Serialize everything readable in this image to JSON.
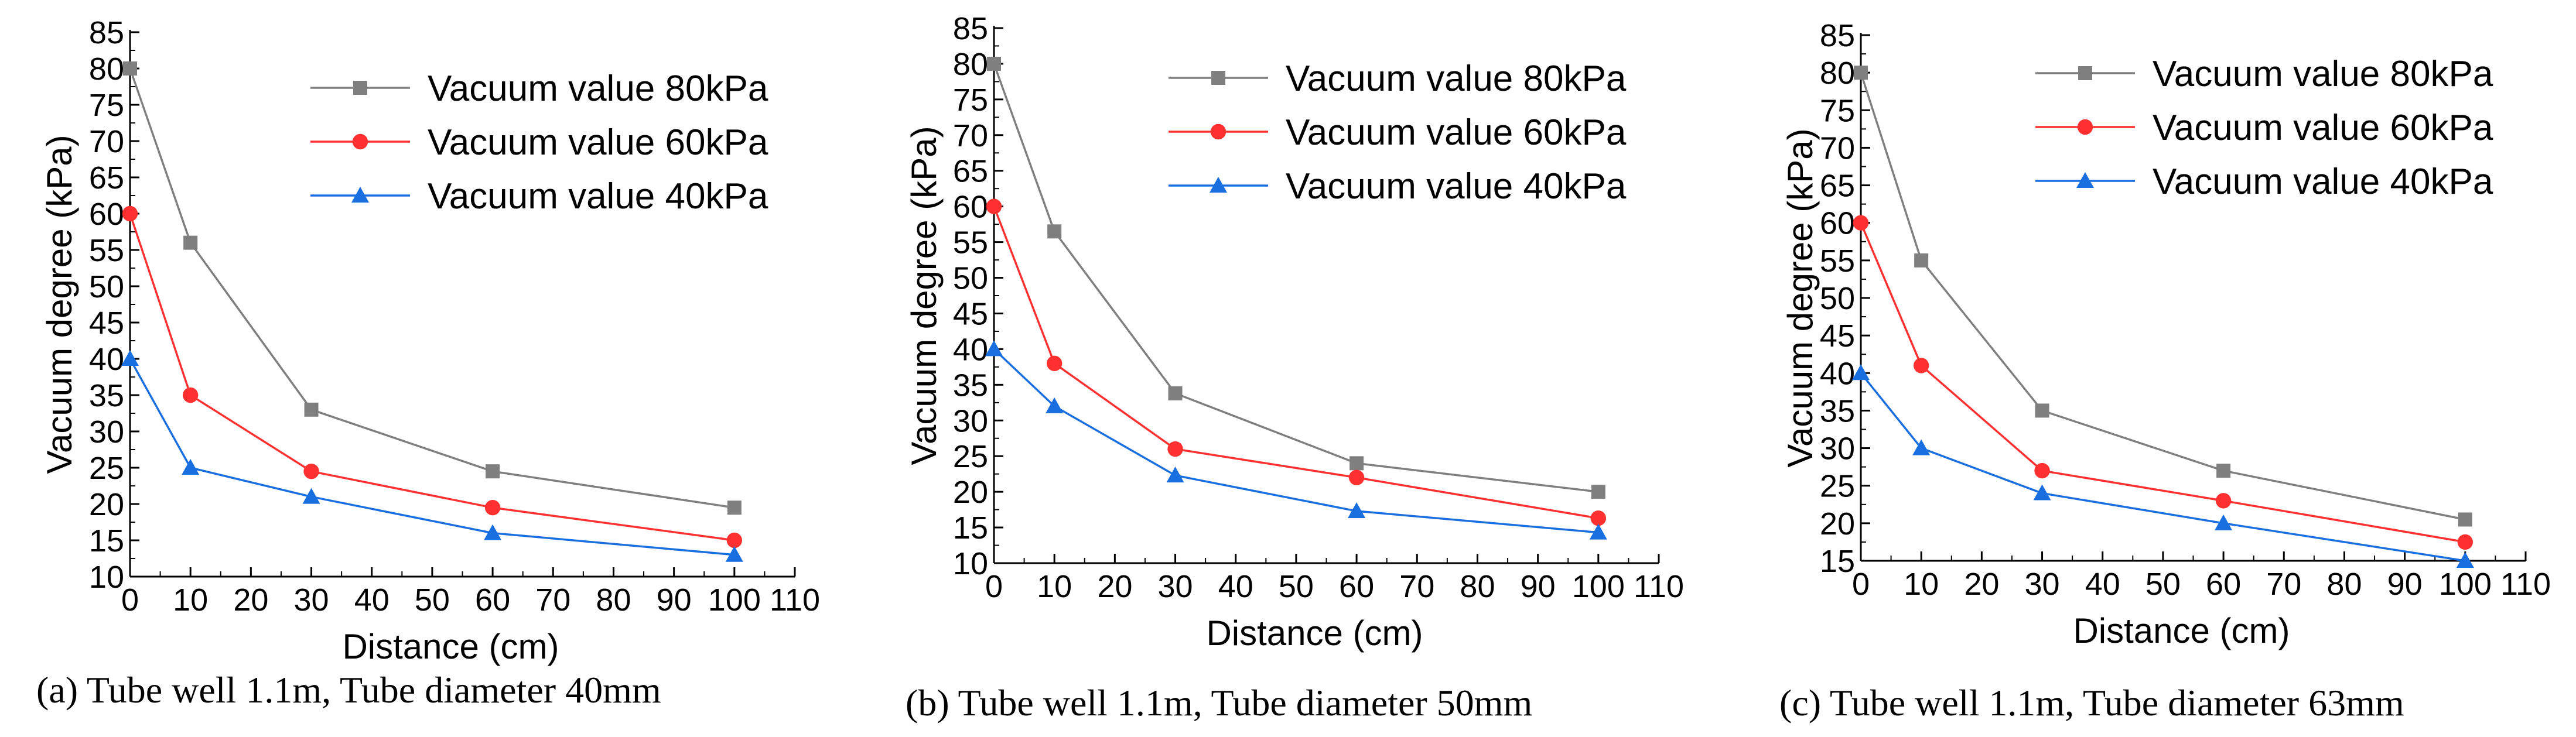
{
  "colors": {
    "series_80": "#7f7f7f",
    "series_60": "#ff3030",
    "series_40": "#1a6fe0",
    "axis": "#000000"
  },
  "chart_data": [
    {
      "type": "line",
      "caption": "(a)   Tube well 1.1m, Tube diameter 40mm",
      "xlabel": "Distance (cm)",
      "ylabel": "Vacuum degree (kPa)",
      "xlim": [
        0,
        110
      ],
      "ylim": [
        10,
        85
      ],
      "xticks": [
        0,
        10,
        20,
        30,
        40,
        50,
        60,
        70,
        80,
        90,
        100,
        110
      ],
      "yticks": [
        10,
        15,
        20,
        25,
        30,
        35,
        40,
        45,
        50,
        55,
        60,
        65,
        70,
        75,
        80,
        85
      ],
      "x": [
        0,
        10,
        30,
        60,
        100
      ],
      "legend_position": "top-right",
      "series": [
        {
          "name": "Vacuum value 80kPa",
          "marker": "square",
          "color": "#7f7f7f",
          "values": [
            80,
            56,
            33,
            24.5,
            19.5
          ]
        },
        {
          "name": "Vacuum value 60kPa",
          "marker": "circle",
          "color": "#ff3030",
          "values": [
            60,
            35,
            24.5,
            19.5,
            15
          ]
        },
        {
          "name": "Vacuum value 40kPa",
          "marker": "triangle",
          "color": "#1a6fe0",
          "values": [
            40,
            25,
            21,
            16,
            13
          ]
        }
      ]
    },
    {
      "type": "line",
      "caption": "(b)  Tube well 1.1m, Tube diameter 50mm",
      "xlabel": "Distance (cm)",
      "ylabel": "Vacuum degree (kPa)",
      "xlim": [
        0,
        110
      ],
      "ylim": [
        10,
        85
      ],
      "xticks": [
        0,
        10,
        20,
        30,
        40,
        50,
        60,
        70,
        80,
        90,
        100,
        110
      ],
      "yticks": [
        10,
        15,
        20,
        25,
        30,
        35,
        40,
        45,
        50,
        55,
        60,
        65,
        70,
        75,
        80,
        85
      ],
      "x": [
        0,
        10,
        30,
        60,
        100
      ],
      "legend_position": "top-right",
      "series": [
        {
          "name": "Vacuum value 80kPa",
          "marker": "square",
          "color": "#7f7f7f",
          "values": [
            80,
            56.5,
            33.8,
            24,
            20
          ]
        },
        {
          "name": "Vacuum value 60kPa",
          "marker": "circle",
          "color": "#ff3030",
          "values": [
            60,
            38,
            26,
            22,
            16.3
          ]
        },
        {
          "name": "Vacuum value 40kPa",
          "marker": "triangle",
          "color": "#1a6fe0",
          "values": [
            40,
            32,
            22.3,
            17.3,
            14.3
          ]
        }
      ]
    },
    {
      "type": "line",
      "caption": "(c)  Tube well 1.1m, Tube diameter 63mm",
      "xlabel": "Distance (cm)",
      "ylabel": "Vacuum degree (kPa)",
      "xlim": [
        0,
        110
      ],
      "ylim": [
        15,
        85
      ],
      "xticks": [
        0,
        10,
        20,
        30,
        40,
        50,
        60,
        70,
        80,
        90,
        100,
        110
      ],
      "yticks": [
        15,
        20,
        25,
        30,
        35,
        40,
        45,
        50,
        55,
        60,
        65,
        70,
        75,
        80,
        85
      ],
      "x": [
        0,
        10,
        30,
        60,
        100
      ],
      "legend_position": "top-right",
      "series": [
        {
          "name": "Vacuum value 80kPa",
          "marker": "square",
          "color": "#7f7f7f",
          "values": [
            80,
            55,
            35,
            27,
            20.5
          ]
        },
        {
          "name": "Vacuum value 60kPa",
          "marker": "circle",
          "color": "#ff3030",
          "values": [
            60,
            41,
            27,
            23,
            17.5
          ]
        },
        {
          "name": "Vacuum value 40kPa",
          "marker": "triangle",
          "color": "#1a6fe0",
          "values": [
            40,
            30,
            24,
            20,
            15
          ]
        }
      ]
    }
  ]
}
